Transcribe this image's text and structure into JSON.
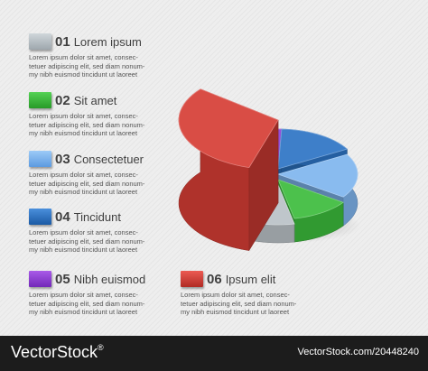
{
  "legend": [
    {
      "num": "01",
      "title": "Lorem ipsum",
      "color": "#b9c1c6",
      "body": "Lorem ipsum dolor sit amet, consec-tetuer adipiscing elit, sed diam nonum-my nibh euismod tincidunt ut laoreet"
    },
    {
      "num": "02",
      "title": "Sit amet",
      "color": "#3cbc3c",
      "body": "Lorem ipsum dolor sit amet, consec-tetuer adipiscing elit, sed diam nonum-my nibh euismod tincidunt ut laoreet"
    },
    {
      "num": "03",
      "title": "Consectetuer",
      "color": "#7fb5ee",
      "body": "Lorem ipsum dolor sit amet, consec-tetuer adipiscing elit, sed diam nonum-my nibh euismod tincidunt ut laoreet"
    },
    {
      "num": "04",
      "title": "Tincidunt",
      "color": "#2d74c4",
      "body": "Lorem ipsum dolor sit amet, consec-tetuer adipiscing elit, sed diam nonum-my nibh euismod tincidunt ut laoreet"
    },
    {
      "num": "05",
      "title": "Nibh euismod",
      "color": "#8e3ed6",
      "body": "Lorem ipsum dolor sit amet, consec-tetuer adipiscing elit, sed diam nonum-my nibh euismod tincidunt ut laoreet"
    },
    {
      "num": "06",
      "title": "Ipsum elit",
      "color": "#d63d35",
      "body": "Lorem ipsum dolor sit amet, consec-tetuer adipiscing elit, sed diam nonum-my nibh euismod tincidunt ut laoreet"
    }
  ],
  "chart_data": {
    "type": "pie",
    "categories": [
      "01",
      "02",
      "03",
      "04",
      "05",
      "06"
    ],
    "values": [
      8,
      12,
      18,
      16,
      15,
      31
    ],
    "heights": [
      1,
      1.3,
      1.6,
      1.9,
      1.9,
      4.6
    ],
    "title": "",
    "legend_position": "left"
  },
  "footer": {
    "brand": "VectorStock",
    "reg": "®",
    "id": "VectorStock.com/20448240"
  }
}
